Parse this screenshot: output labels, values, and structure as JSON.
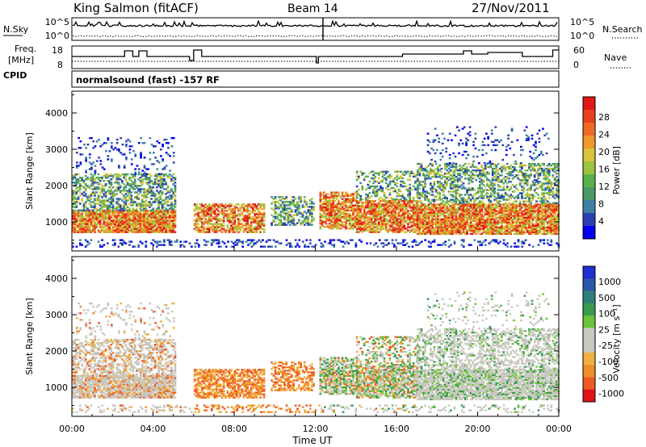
{
  "header": {
    "station": "King Salmon (fitACF)",
    "beam": "Beam 14",
    "date": "27/Nov/2011"
  },
  "side_labels": {
    "nsky": "N.Sky",
    "freq_line1": "Freq.",
    "freq_line2": "[MHz]",
    "cpid": "CPID",
    "nsearch": "N.Search",
    "nave": "Nave"
  },
  "noise_axis": {
    "left_ticks": [
      "10^5",
      "10^0"
    ],
    "right_ticks": [
      "10^5",
      "10^0"
    ]
  },
  "freq_axis": {
    "left_ticks": [
      "18",
      "8"
    ],
    "right_ticks": [
      "60",
      "0"
    ]
  },
  "cpid_text": "normalsound (fast) -157 RF",
  "chart_data": [
    {
      "type": "heatmap",
      "name": "power",
      "ylabel": "Slant Range [km]",
      "ylim": [
        200,
        4600
      ],
      "yticks": [
        1000,
        2000,
        3000,
        4000
      ],
      "xlim": [
        0,
        24
      ],
      "colorbar": {
        "label": "Power [dB]",
        "ticks": [
          "28",
          "24",
          "20",
          "16",
          "12",
          "8",
          "4"
        ],
        "colors": [
          "#0000ee",
          "#2a3fb0",
          "#3e7fa3",
          "#4a9a68",
          "#57b04b",
          "#9cc43f",
          "#d8c23a",
          "#ee9a2a",
          "#ee6a22",
          "#e8401e",
          "#e21818"
        ]
      }
    },
    {
      "type": "heatmap",
      "name": "velocity",
      "ylabel": "Slant Range [km]",
      "ylim": [
        200,
        4600
      ],
      "yticks": [
        1000,
        2000,
        3000,
        4000
      ],
      "xlim": [
        0,
        24
      ],
      "colorbar": {
        "label": "Velocity [m s⁻¹]",
        "ticks": [
          "1000",
          "500",
          "100",
          "25",
          "-25",
          "-100",
          "-500",
          "-1000"
        ],
        "colors": [
          "#e0121a",
          "#ee5a24",
          "#ee8c2a",
          "#f0b040",
          "#c8c8c0",
          "#c8c8c0",
          "#6cc23a",
          "#3a9a52",
          "#2f7f7a",
          "#2a58a8",
          "#1f2fd0"
        ]
      }
    }
  ],
  "x_axis": {
    "ticks": [
      "00:00",
      "04:00",
      "08:00",
      "12:00",
      "16:00",
      "20:00",
      "00:00"
    ],
    "label": "Time UT"
  }
}
